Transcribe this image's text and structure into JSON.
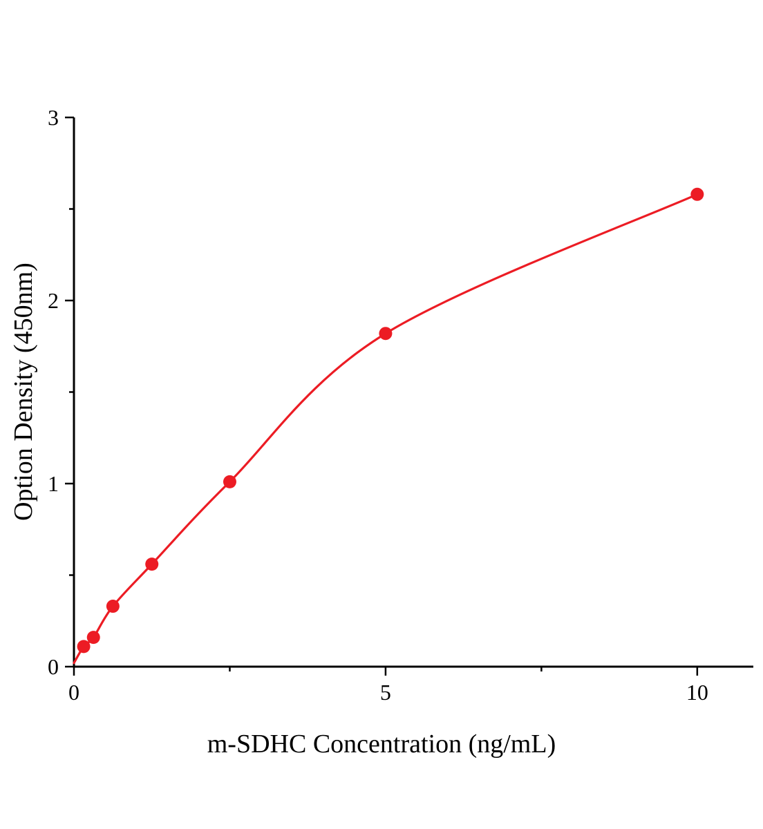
{
  "chart_data": {
    "type": "scatter",
    "title": "",
    "xlabel": "m-SDHC Concentration（ng/mL）",
    "ylabel": "Option Density（450nm）",
    "x": [
      0.156,
      0.313,
      0.625,
      1.25,
      2.5,
      5,
      10
    ],
    "y": [
      0.11,
      0.16,
      0.33,
      0.56,
      1.01,
      1.82,
      2.58
    ],
    "curve_start": [
      0,
      0.02
    ],
    "xlim": [
      0,
      10.9
    ],
    "ylim": [
      0,
      3
    ],
    "x_major_ticks": [
      0,
      5,
      10
    ],
    "x_minor_ticks": [
      2.5,
      7.5
    ],
    "y_major_ticks": [
      0,
      1,
      2,
      3
    ],
    "y_minor_ticks": [
      0.5,
      1.5,
      2.5
    ],
    "point_color": "#ec1c24",
    "line_color": "#ec1c24",
    "axis_color": "#000000",
    "grid": false,
    "legend": null
  }
}
